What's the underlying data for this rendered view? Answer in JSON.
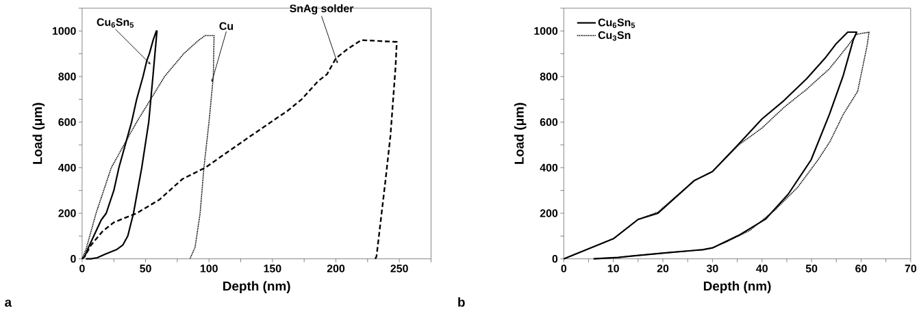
{
  "chart_data": [
    {
      "type": "line",
      "xlabel": "Depth (nm)",
      "ylabel": "Load (μm)",
      "xlim": [
        0,
        275
      ],
      "ylim": [
        0,
        1100
      ],
      "xticks": [
        0,
        {
          "value": 25,
          "label": null
        },
        50,
        {
          "value": 75,
          "label": null
        },
        100,
        {
          "value": 125,
          "label": null
        },
        150,
        {
          "value": 175,
          "label": null
        },
        200,
        {
          "value": 225,
          "label": null
        },
        250,
        {
          "value": 275,
          "label": null
        }
      ],
      "yticks": [
        0,
        {
          "value": 100,
          "label": null
        },
        200,
        {
          "value": 300,
          "label": null
        },
        400,
        {
          "value": 500,
          "label": null
        },
        600,
        {
          "value": 700,
          "label": null
        },
        800,
        {
          "value": 900,
          "label": null
        },
        1000,
        {
          "value": 1100,
          "label": null
        }
      ],
      "grid": false,
      "marker": "none",
      "series": [
        {
          "color": "#000000",
          "line_style": "solid",
          "x": [
            0,
            2,
            5,
            10,
            15,
            19,
            25,
            29,
            34,
            39,
            43,
            48,
            51,
            53,
            56,
            58.5,
            59,
            57.4,
            55.8,
            52.5,
            47,
            40.5,
            36,
            32,
            27,
            18,
            12,
            7,
            3
          ],
          "values": [
            0,
            10,
            50,
            110,
            170,
            200,
            300,
            400,
            500,
            600,
            700,
            800,
            870,
            900,
            960,
            1000,
            1000,
            900,
            800,
            600,
            400,
            200,
            100,
            60,
            40,
            20,
            5,
            0,
            0
          ]
        },
        {
          "color": "#000000",
          "line_style": "dotted",
          "x": [
            0,
            3,
            6,
            11,
            17,
            23,
            33,
            43,
            54,
            65,
            80,
            92,
            97,
            104,
            103.4,
            100,
            96,
            93,
            89,
            85
          ],
          "values": [
            0,
            40,
            100,
            200,
            300,
            400,
            500,
            600,
            700,
            800,
            900,
            960,
            980,
            980,
            800,
            600,
            400,
            200,
            50,
            0
          ]
        },
        {
          "color": "#000000",
          "line_style": "dashed",
          "x": [
            0,
            2,
            7,
            16,
            25,
            43,
            61,
            79,
            97,
            133,
            162,
            173,
            186,
            193,
            200,
            209,
            220,
            248,
            247,
            243,
            239,
            232,
            231
          ],
          "values": [
            0,
            10,
            60,
            120,
            160,
            200,
            260,
            350,
            400,
            540,
            650,
            700,
            780,
            810,
            880,
            920,
            960,
            952,
            840,
            540,
            340,
            10,
            0
          ]
        }
      ],
      "annotations": [
        {
          "text": "Cu$_{6}$Sn$_{5}$",
          "x": 51,
          "y": 870
        },
        {
          "text": "Cu",
          "x": 103.4,
          "y": 800
        },
        {
          "text": "SnAg solder",
          "x": 200,
          "y": 880
        },
        "a"
      ]
    },
    {
      "type": "line",
      "xlabel": "Depth (nm)",
      "ylabel": "Load (μm)",
      "xlim": [
        0,
        70
      ],
      "ylim": [
        0,
        1100
      ],
      "xticks": [
        0,
        {
          "value": 5,
          "label": null
        },
        10,
        {
          "value": 15,
          "label": null
        },
        20,
        {
          "value": 25,
          "label": null
        },
        30,
        {
          "value": 35,
          "label": null
        },
        40,
        {
          "value": 45,
          "label": null
        },
        50,
        {
          "value": 55,
          "label": null
        },
        60,
        {
          "value": 65,
          "label": null
        },
        70
      ],
      "yticks": [
        0,
        {
          "value": 100,
          "label": null
        },
        200,
        {
          "value": 300,
          "label": null
        },
        400,
        {
          "value": 500,
          "label": null
        },
        600,
        {
          "value": 700,
          "label": null
        },
        800,
        {
          "value": 900,
          "label": null
        },
        1000,
        {
          "value": 1100,
          "label": null
        }
      ],
      "grid": false,
      "marker": "none",
      "legend": "top left",
      "series": [
        {
          "name": "Cu$_{6}$Sn$_{5}$",
          "color": "#000000",
          "line_style": "solid",
          "x": [
            0,
            4.9,
            10,
            15,
            19,
            26.3,
            30,
            35.3,
            40,
            44.4,
            49,
            52.7,
            55,
            57.3,
            59.1,
            58.4,
            56.4,
            53.6,
            49.9,
            45.3,
            40.7,
            35.3,
            30,
            28,
            21,
            14,
            11,
            6
          ],
          "values": [
            0,
            43,
            88,
            173,
            200,
            343,
            383,
            504,
            614,
            694,
            790,
            880,
            945,
            995,
            995,
            960,
            805,
            634,
            434,
            284,
            174,
            103,
            48,
            40,
            27,
            13,
            6,
            0
          ]
        },
        {
          "name": "Cu$_{3}$Sn",
          "color": "#000000",
          "line_style": "dotted",
          "x": [
            0,
            4.9,
            10,
            15,
            19,
            26.3,
            30,
            35.3,
            40,
            44.4,
            49,
            53.6,
            57.3,
            59,
            61.6,
            61.2,
            59.3,
            56.4,
            53.7,
            51.3,
            47.2,
            42.6,
            37.5,
            32.8,
            30,
            28,
            21,
            14,
            11,
            6
          ],
          "values": [
            0,
            43,
            88,
            173,
            205,
            343,
            383,
            500,
            574,
            664,
            744,
            834,
            934,
            985,
            995,
            935,
            735,
            634,
            514,
            434,
            314,
            214,
            124,
            74,
            48,
            40,
            27,
            13,
            6,
            0
          ]
        }
      ],
      "annotations": [
        "b"
      ]
    }
  ]
}
